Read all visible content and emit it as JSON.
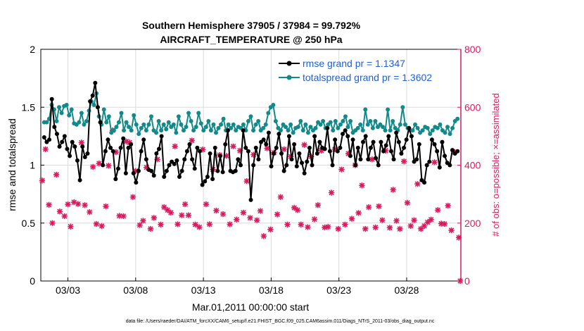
{
  "chart_data": {
    "type": "line",
    "title": "Southern Hemisphere 37905 / 37984 = 99.792%",
    "subtitle": "AIRCRAFT_TEMPERATURE @ 250 hPa",
    "xlabel": "Mar.01,2011 00:00:00 start",
    "ylabel": "rmse and totalspread",
    "ylabel_right": "# of obs: o=possible; ×=assimilated",
    "footnote": "data file: /Users/raeder/DAI/ATM_forcXX/CAM6_setup/f.e21.FHIST_BGC.f09_025.CAM6assim.011/Diags_NTrS_2011-03/obs_diag_output.nc",
    "xlim": [
      1.0,
      32.0
    ],
    "ylim": [
      0,
      2
    ],
    "ylim_right": [
      0,
      800
    ],
    "xticks": [
      3,
      8,
      13,
      18,
      23,
      28
    ],
    "xticklabels": [
      "03/03",
      "03/08",
      "03/13",
      "03/18",
      "03/23",
      "03/28"
    ],
    "yticks": [
      0,
      0.5,
      1,
      1.5,
      2
    ],
    "yticks_right": [
      0,
      200,
      400,
      600,
      800
    ],
    "grid": true,
    "legend_position": "top-right",
    "colors": {
      "rmse": "#000000",
      "spread": "#138a8a",
      "obs": "#d81b60",
      "legend_text": "#1f5fd6"
    },
    "series": [
      {
        "name": "rmse grand pr = 1.1347",
        "values": [
          1.24,
          1.2,
          1.22,
          1.57,
          1.33,
          1.27,
          1.16,
          1.2,
          1.25,
          1.14,
          1.08,
          1.2,
          1.16,
          1.04,
          0.87,
          1.16,
          1.07,
          1.1,
          1.55,
          1.6,
          1.71,
          1.5,
          1.37,
          1.0,
          1.12,
          1.22,
          1.15,
          1.12,
          0.88,
          0.97,
          1.15,
          1.23,
          0.93,
          1.15,
          1.18,
          0.93,
          0.85,
          0.95,
          1.12,
          1.22,
          1.05,
          0.96,
          0.95,
          0.91,
          1.1,
          1.14,
          1.25,
          0.9,
          0.95,
          1.0,
          1.03,
          1.01,
          1.04,
          0.9,
          0.95,
          1.05,
          1.12,
          1.18,
          1.05,
          0.97,
          1.15,
          1.12,
          0.83,
          0.86,
          0.9,
          1.1,
          0.88,
          1.15,
          0.95,
          1.08,
          0.94,
          1.18,
          1.3,
          0.95,
          0.94,
          0.95,
          1.05,
          1.0,
          1.3,
          1.15,
          1.12,
          0.7,
          1.0,
          1.15,
          1.05,
          1.2,
          1.22,
          1.18,
          1.28,
          0.99,
          1.1,
          1.15,
          1.27,
          1.1,
          0.95,
          1.0,
          1.25,
          1.05,
          1.18,
          0.99,
          1.1,
          1.02,
          0.93,
          1.03,
          1.15,
          1.0,
          1.25,
          1.1,
          1.2,
          1.15,
          1.14,
          1.32,
          1.12,
          1.0,
          1.22,
          1.12,
          1.15,
          1.27,
          1.3,
          1.25,
          1.08,
          1.22,
          1.0,
          1.15,
          1.05,
          1.2,
          1.25,
          1.05,
          1.15,
          1.2,
          1.06,
          1.0,
          1.2,
          1.12,
          1.17,
          1.25,
          1.12,
          1.05,
          1.28,
          1.2,
          1.1,
          1.15,
          1.22,
          1.32,
          1.25,
          1.03,
          1.05,
          1.18,
          0.87,
          0.85,
          1.0,
          1.03,
          1.22,
          1.18,
          1.12,
          0.98,
          1.2,
          1.08,
          1.02,
          1.0,
          1.13,
          1.1,
          1.12
        ]
      },
      {
        "name": "totalspread grand pr = 1.3602",
        "values": [
          1.37,
          1.37,
          1.4,
          1.52,
          1.48,
          1.38,
          1.5,
          1.45,
          1.51,
          1.52,
          1.43,
          1.48,
          1.36,
          1.35,
          1.37,
          1.45,
          1.35,
          1.38,
          1.47,
          1.55,
          1.52,
          1.62,
          1.42,
          1.35,
          1.48,
          1.37,
          1.42,
          1.28,
          1.3,
          1.33,
          1.37,
          1.45,
          1.3,
          1.37,
          1.33,
          1.3,
          1.43,
          1.35,
          1.27,
          1.32,
          1.35,
          1.3,
          1.35,
          1.42,
          1.3,
          1.28,
          1.38,
          1.3,
          1.35,
          1.31,
          1.37,
          1.33,
          1.35,
          1.28,
          1.42,
          1.35,
          1.3,
          1.33,
          1.45,
          1.38,
          1.3,
          1.33,
          1.45,
          1.36,
          1.3,
          1.33,
          1.38,
          1.3,
          1.35,
          1.28,
          1.32,
          1.35,
          1.4,
          1.3,
          1.35,
          1.32,
          1.35,
          1.3,
          1.33,
          1.32,
          1.35,
          1.3,
          1.38,
          1.42,
          1.3,
          1.35,
          1.38,
          1.3,
          1.32,
          1.35,
          1.45,
          1.5,
          1.52,
          1.38,
          1.32,
          1.3,
          1.35,
          1.33,
          1.3,
          1.35,
          1.28,
          1.32,
          1.33,
          1.38,
          1.3,
          1.35,
          1.28,
          1.33,
          1.3,
          1.32,
          1.37,
          1.35,
          1.38,
          1.32,
          1.35,
          1.37,
          1.3,
          1.38,
          1.32,
          1.35,
          1.38,
          1.42,
          1.33,
          1.38,
          1.28,
          1.3,
          1.32,
          1.35,
          1.3,
          1.48,
          1.35,
          1.38,
          1.32,
          1.38,
          1.33,
          1.35,
          1.33,
          1.3,
          1.48,
          1.3,
          1.38,
          1.32,
          1.3,
          1.35,
          1.5,
          1.35,
          1.32,
          1.3,
          1.3,
          1.35,
          1.32,
          1.28,
          1.3,
          1.33,
          1.32,
          1.27,
          1.3,
          1.33,
          1.32,
          1.35,
          1.3,
          1.28,
          1.33,
          1.27,
          1.32,
          1.38,
          1.4
        ]
      }
    ],
    "obs_assimilated": [
      [
        1.1,
        347
      ],
      [
        1.35,
        455
      ],
      [
        1.6,
        263
      ],
      [
        1.85,
        200
      ],
      [
        2.15,
        367
      ],
      [
        2.4,
        240
      ],
      [
        2.75,
        224
      ],
      [
        3.0,
        265
      ],
      [
        3.2,
        188
      ],
      [
        3.45,
        272
      ],
      [
        3.75,
        266
      ],
      [
        4.0,
        478
      ],
      [
        4.25,
        262
      ],
      [
        4.6,
        238
      ],
      [
        4.85,
        394
      ],
      [
        5.1,
        197
      ],
      [
        5.3,
        406
      ],
      [
        5.5,
        190
      ],
      [
        5.8,
        258
      ],
      [
        6.0,
        398
      ],
      [
        6.3,
        520
      ],
      [
        6.55,
        445
      ],
      [
        6.8,
        225
      ],
      [
        7.1,
        224
      ],
      [
        7.3,
        482
      ],
      [
        7.55,
        478
      ],
      [
        7.8,
        290
      ],
      [
        8.0,
        380
      ],
      [
        8.3,
        193
      ],
      [
        8.55,
        208
      ],
      [
        8.8,
        392
      ],
      [
        9.1,
        180
      ],
      [
        9.35,
        218
      ],
      [
        9.6,
        420
      ],
      [
        9.85,
        195
      ],
      [
        10.1,
        255
      ],
      [
        10.35,
        245
      ],
      [
        10.6,
        236
      ],
      [
        10.9,
        465
      ],
      [
        11.1,
        196
      ],
      [
        11.4,
        227
      ],
      [
        11.65,
        265
      ],
      [
        11.9,
        227
      ],
      [
        12.15,
        485
      ],
      [
        12.4,
        195
      ],
      [
        12.7,
        186
      ],
      [
        12.95,
        454
      ],
      [
        13.2,
        265
      ],
      [
        13.45,
        196
      ],
      [
        13.7,
        385
      ],
      [
        13.95,
        243
      ],
      [
        14.2,
        435
      ],
      [
        14.45,
        231
      ],
      [
        14.7,
        432
      ],
      [
        14.95,
        196
      ],
      [
        15.2,
        465
      ],
      [
        15.45,
        212
      ],
      [
        15.7,
        450
      ],
      [
        15.95,
        236
      ],
      [
        16.2,
        345
      ],
      [
        16.45,
        218
      ],
      [
        16.7,
        436
      ],
      [
        16.95,
        210
      ],
      [
        17.2,
        242
      ],
      [
        17.45,
        155
      ],
      [
        17.7,
        458
      ],
      [
        17.95,
        178
      ],
      [
        18.2,
        443
      ],
      [
        18.45,
        230
      ],
      [
        18.7,
        290
      ],
      [
        18.95,
        455
      ],
      [
        19.2,
        195
      ],
      [
        19.45,
        430
      ],
      [
        19.7,
        253
      ],
      [
        19.95,
        245
      ],
      [
        20.2,
        195
      ],
      [
        20.45,
        470
      ],
      [
        20.7,
        186
      ],
      [
        20.95,
        430
      ],
      [
        21.2,
        213
      ],
      [
        21.45,
        262
      ],
      [
        21.7,
        450
      ],
      [
        21.95,
        185
      ],
      [
        22.2,
        187
      ],
      [
        22.45,
        305
      ],
      [
        22.7,
        455
      ],
      [
        22.95,
        180
      ],
      [
        23.2,
        385
      ],
      [
        23.45,
        195
      ],
      [
        23.7,
        440
      ],
      [
        23.95,
        215
      ],
      [
        24.2,
        400
      ],
      [
        24.45,
        235
      ],
      [
        24.7,
        330
      ],
      [
        24.95,
        180
      ],
      [
        25.2,
        255
      ],
      [
        25.45,
        420
      ],
      [
        25.7,
        185
      ],
      [
        25.95,
        258
      ],
      [
        26.2,
        210
      ],
      [
        26.45,
        450
      ],
      [
        26.75,
        184
      ],
      [
        27.0,
        315
      ],
      [
        27.25,
        208
      ],
      [
        27.5,
        180
      ],
      [
        27.8,
        413
      ],
      [
        28.05,
        270
      ],
      [
        28.3,
        190
      ],
      [
        28.55,
        210
      ],
      [
        28.8,
        335
      ],
      [
        29.05,
        180
      ],
      [
        29.3,
        190
      ],
      [
        29.55,
        203
      ],
      [
        29.8,
        212
      ],
      [
        30.05,
        410
      ],
      [
        30.3,
        245
      ],
      [
        30.55,
        198
      ],
      [
        30.8,
        197
      ],
      [
        31.05,
        260
      ],
      [
        31.3,
        175
      ],
      [
        31.55,
        445
      ],
      [
        31.85,
        150
      ],
      [
        31.95,
        0
      ]
    ]
  }
}
